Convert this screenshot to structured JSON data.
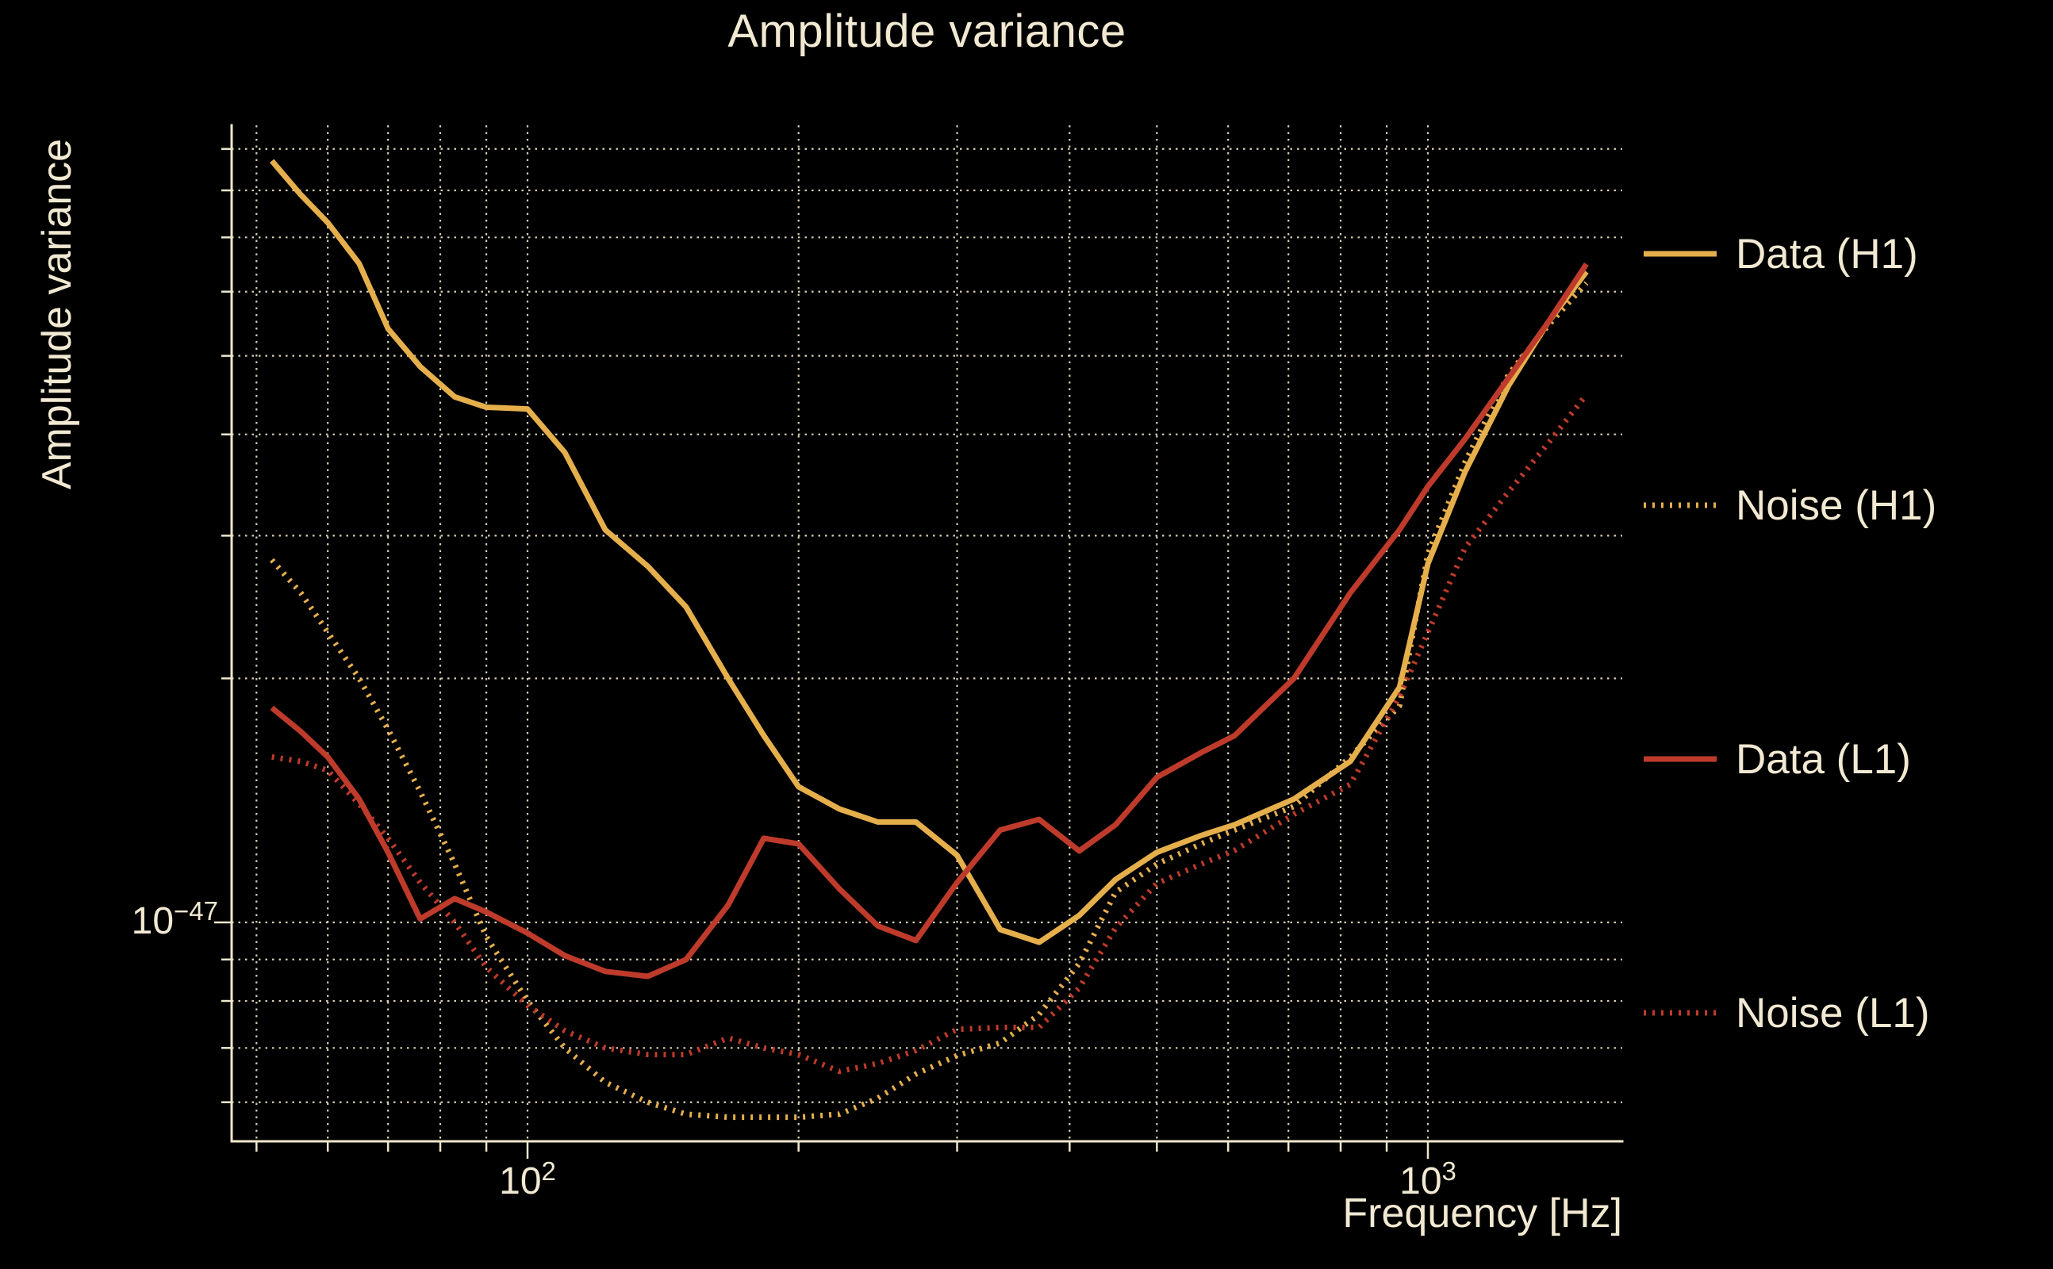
{
  "figure": {
    "title": "Amplitude variance",
    "background": "#000000"
  },
  "axes": {
    "xlabel": "Frequency [Hz]",
    "ylabel": "Amplitude variance",
    "x_ticks": [
      {
        "base": "10",
        "exp": "2"
      },
      {
        "base": "10",
        "exp": "3"
      }
    ],
    "y_ticks": [
      {
        "base": "10",
        "exp": "−47"
      }
    ],
    "text_color": "#F2E9D2",
    "grid_color": "#EDE4C8",
    "spine_color": "#EFE7CC",
    "grid_style": "dotted"
  },
  "legend": [
    {
      "label": "Data (H1)",
      "style": "solid",
      "color": "#E5AF4C"
    },
    {
      "label": "Noise (H1)",
      "style": "dotted",
      "color": "#E5AF4C"
    },
    {
      "label": "Data (L1)",
      "style": "solid",
      "color": "#BE3B2B"
    },
    {
      "label": "Noise (L1)",
      "style": "dotted",
      "color": "#BE3B2B"
    }
  ],
  "chart_data": {
    "type": "line",
    "title": "Amplitude variance",
    "xlabel": "Frequency [Hz]",
    "ylabel": "Amplitude variance",
    "x_scale": "log",
    "y_scale": "log",
    "grid": "dotted, log major+minor, on",
    "legend_position": "right, outside axes",
    "xlim_hz": [
      47,
      1643
    ],
    "ylim_1e47": [
      0.537,
      9.55
    ],
    "value_unit": "1e-47",
    "x_hz": [
      52,
      56,
      60,
      65,
      70,
      76,
      83,
      90,
      100,
      110,
      122,
      136,
      150,
      167,
      183,
      200,
      222,
      245,
      270,
      300,
      335,
      370,
      410,
      450,
      500,
      560,
      610,
      710,
      820,
      930,
      1000,
      1100,
      1230,
      1360,
      1500
    ],
    "series": [
      {
        "name": "Data (H1)",
        "style": "solid",
        "color": "#E5AF4C",
        "values": [
          8.7,
          7.9,
          7.3,
          6.5,
          5.4,
          4.85,
          4.45,
          4.32,
          4.3,
          3.8,
          3.05,
          2.75,
          2.45,
          2.0,
          1.7,
          1.47,
          1.38,
          1.33,
          1.33,
          1.21,
          0.98,
          0.945,
          1.02,
          1.13,
          1.22,
          1.28,
          1.32,
          1.42,
          1.58,
          1.95,
          2.77,
          3.6,
          4.6,
          5.5,
          6.35
        ]
      },
      {
        "name": "Noise (H1)",
        "style": "dotted",
        "color": "#E5AF4C",
        "values": [
          2.8,
          2.55,
          2.28,
          2.0,
          1.73,
          1.45,
          1.18,
          0.96,
          0.8,
          0.7,
          0.635,
          0.6,
          0.58,
          0.575,
          0.575,
          0.575,
          0.58,
          0.607,
          0.65,
          0.685,
          0.71,
          0.77,
          0.89,
          1.09,
          1.18,
          1.25,
          1.3,
          1.39,
          1.6,
          1.85,
          2.85,
          3.7,
          4.75,
          5.45,
          6.15
        ]
      },
      {
        "name": "Data (L1)",
        "style": "solid",
        "color": "#BE3B2B",
        "values": [
          1.84,
          1.72,
          1.6,
          1.42,
          1.22,
          1.01,
          1.07,
          1.03,
          0.97,
          0.91,
          0.87,
          0.858,
          0.9,
          1.05,
          1.27,
          1.25,
          1.1,
          0.99,
          0.95,
          1.12,
          1.3,
          1.34,
          1.225,
          1.32,
          1.51,
          1.62,
          1.7,
          2.0,
          2.55,
          3.05,
          3.45,
          3.95,
          4.7,
          5.5,
          6.49
        ]
      },
      {
        "name": "Noise (L1)",
        "style": "dotted",
        "color": "#BE3B2B",
        "values": [
          1.6,
          1.58,
          1.54,
          1.4,
          1.27,
          1.12,
          1.0,
          0.88,
          0.79,
          0.735,
          0.7,
          0.687,
          0.687,
          0.72,
          0.7,
          0.687,
          0.655,
          0.67,
          0.695,
          0.738,
          0.742,
          0.742,
          0.83,
          0.985,
          1.117,
          1.18,
          1.227,
          1.36,
          1.48,
          1.9,
          2.28,
          2.9,
          3.4,
          3.9,
          4.48
        ]
      }
    ]
  }
}
